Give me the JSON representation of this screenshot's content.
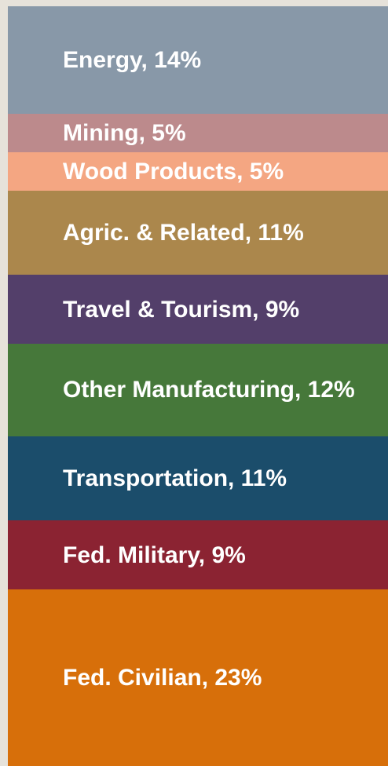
{
  "chart_data": {
    "type": "bar",
    "stacked": true,
    "series": [
      {
        "color": "#8898a8",
        "values": [
          14
        ],
        "value_labels": [
          "Energy, 14%"
        ]
      },
      {
        "color": "#bc8a8c",
        "values": [
          5
        ],
        "value_labels": [
          "Mining, 5%"
        ]
      },
      {
        "color": "#f4a682",
        "values": [
          5
        ],
        "value_labels": [
          "Wood Products, 5%"
        ]
      },
      {
        "color": "#ab874c",
        "values": [
          11
        ],
        "value_labels": [
          "Agric. & Related, 11%"
        ]
      },
      {
        "color": "#533f6a",
        "values": [
          9
        ],
        "value_labels": [
          "Travel & Tourism, 9%"
        ]
      },
      {
        "color": "#46783a",
        "values": [
          12
        ],
        "value_labels": [
          "Other Manufacturing, 12%"
        ]
      },
      {
        "color": "#1b4d6b",
        "values": [
          11
        ],
        "value_labels": [
          "Transportation, 11%"
        ]
      },
      {
        "color": "#8b2332",
        "values": [
          9
        ],
        "value_labels": [
          "Fed. Military, 9%"
        ]
      },
      {
        "color": "#d76f0a",
        "values": [
          23
        ],
        "value_labels": [
          "Fed. Civilian, 23%"
        ]
      }
    ]
  }
}
